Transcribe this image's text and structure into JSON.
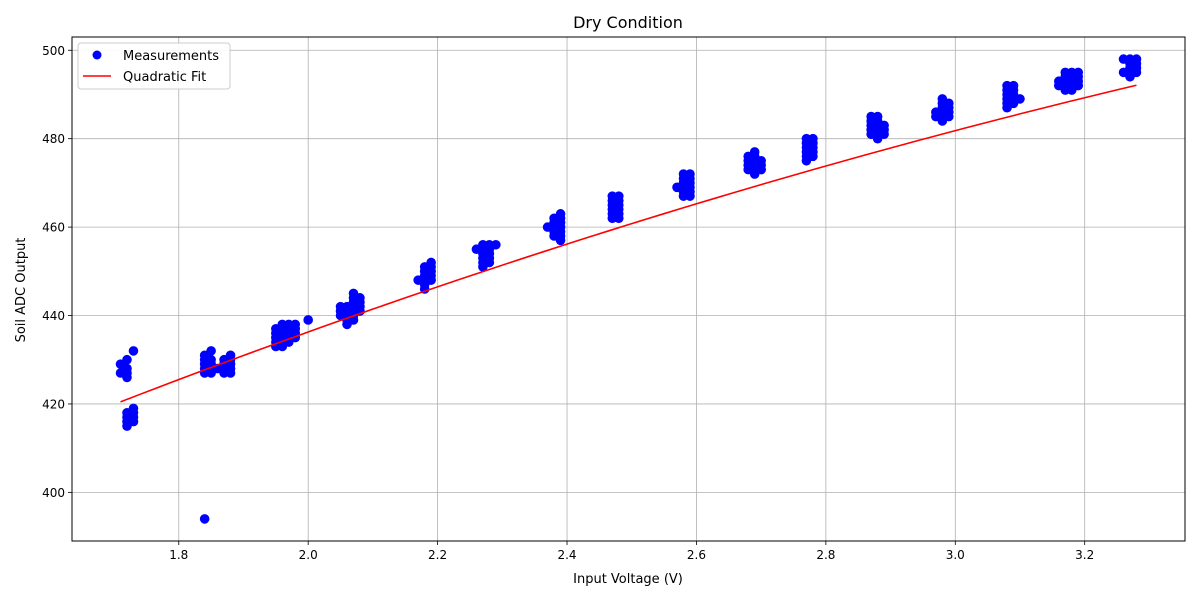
{
  "chart_data": {
    "type": "scatter",
    "title": "Dry Condition",
    "xlabel": "Input Voltage (V)",
    "ylabel": "Soil ADC Output",
    "xlim": [
      1.635,
      3.355
    ],
    "ylim": [
      389,
      503
    ],
    "x_ticks": [
      1.8,
      2.0,
      2.2,
      2.4,
      2.6,
      2.8,
      3.0,
      3.2
    ],
    "x_tick_labels": [
      "1.8",
      "2.0",
      "2.2",
      "2.4",
      "2.6",
      "2.8",
      "3.0",
      "3.2"
    ],
    "y_ticks": [
      400,
      420,
      440,
      460,
      480,
      500
    ],
    "y_tick_labels": [
      "400",
      "420",
      "440",
      "460",
      "480",
      "500"
    ],
    "grid": true,
    "legend_position": "top-left",
    "series": [
      {
        "name": "Measurements",
        "kind": "scatter",
        "color": "#0000ff",
        "points": [
          [
            1.71,
            429
          ],
          [
            1.71,
            427
          ],
          [
            1.72,
            430
          ],
          [
            1.72,
            428
          ],
          [
            1.72,
            427
          ],
          [
            1.72,
            426
          ],
          [
            1.73,
            432
          ],
          [
            1.72,
            418
          ],
          [
            1.72,
            417
          ],
          [
            1.72,
            416
          ],
          [
            1.72,
            415
          ],
          [
            1.73,
            419
          ],
          [
            1.73,
            418
          ],
          [
            1.73,
            417
          ],
          [
            1.73,
            416
          ],
          [
            1.84,
            394
          ],
          [
            1.84,
            431
          ],
          [
            1.84,
            430
          ],
          [
            1.84,
            429
          ],
          [
            1.84,
            428
          ],
          [
            1.84,
            427
          ],
          [
            1.85,
            432
          ],
          [
            1.85,
            430
          ],
          [
            1.85,
            429
          ],
          [
            1.85,
            428
          ],
          [
            1.85,
            427
          ],
          [
            1.86,
            428
          ],
          [
            1.87,
            430
          ],
          [
            1.87,
            429
          ],
          [
            1.87,
            428
          ],
          [
            1.87,
            427
          ],
          [
            1.88,
            431
          ],
          [
            1.88,
            430
          ],
          [
            1.88,
            429
          ],
          [
            1.88,
            428
          ],
          [
            1.88,
            427
          ],
          [
            1.95,
            437
          ],
          [
            1.95,
            436
          ],
          [
            1.95,
            435
          ],
          [
            1.95,
            434
          ],
          [
            1.95,
            433
          ],
          [
            1.96,
            438
          ],
          [
            1.96,
            437
          ],
          [
            1.96,
            436
          ],
          [
            1.96,
            435
          ],
          [
            1.96,
            434
          ],
          [
            1.96,
            433
          ],
          [
            1.97,
            438
          ],
          [
            1.97,
            437
          ],
          [
            1.97,
            436
          ],
          [
            1.97,
            435
          ],
          [
            1.97,
            434
          ],
          [
            1.98,
            438
          ],
          [
            1.98,
            437
          ],
          [
            1.98,
            436
          ],
          [
            1.98,
            435
          ],
          [
            2.0,
            439
          ],
          [
            2.05,
            442
          ],
          [
            2.05,
            441
          ],
          [
            2.05,
            440
          ],
          [
            2.06,
            442
          ],
          [
            2.06,
            441
          ],
          [
            2.06,
            440
          ],
          [
            2.06,
            439
          ],
          [
            2.06,
            438
          ],
          [
            2.07,
            445
          ],
          [
            2.07,
            444
          ],
          [
            2.07,
            443
          ],
          [
            2.07,
            442
          ],
          [
            2.07,
            441
          ],
          [
            2.07,
            440
          ],
          [
            2.07,
            439
          ],
          [
            2.08,
            444
          ],
          [
            2.08,
            443
          ],
          [
            2.08,
            442
          ],
          [
            2.08,
            441
          ],
          [
            2.17,
            448
          ],
          [
            2.18,
            451
          ],
          [
            2.18,
            450
          ],
          [
            2.18,
            449
          ],
          [
            2.18,
            448
          ],
          [
            2.18,
            447
          ],
          [
            2.18,
            446
          ],
          [
            2.19,
            452
          ],
          [
            2.19,
            451
          ],
          [
            2.19,
            450
          ],
          [
            2.19,
            449
          ],
          [
            2.19,
            448
          ],
          [
            2.26,
            455
          ],
          [
            2.27,
            456
          ],
          [
            2.27,
            455
          ],
          [
            2.27,
            454
          ],
          [
            2.27,
            453
          ],
          [
            2.27,
            452
          ],
          [
            2.27,
            451
          ],
          [
            2.28,
            456
          ],
          [
            2.28,
            455
          ],
          [
            2.28,
            454
          ],
          [
            2.28,
            453
          ],
          [
            2.28,
            452
          ],
          [
            2.29,
            456
          ],
          [
            2.37,
            460
          ],
          [
            2.38,
            462
          ],
          [
            2.38,
            461
          ],
          [
            2.38,
            460
          ],
          [
            2.38,
            459
          ],
          [
            2.38,
            458
          ],
          [
            2.39,
            463
          ],
          [
            2.39,
            462
          ],
          [
            2.39,
            461
          ],
          [
            2.39,
            460
          ],
          [
            2.39,
            459
          ],
          [
            2.39,
            458
          ],
          [
            2.39,
            457
          ],
          [
            2.47,
            467
          ],
          [
            2.47,
            466
          ],
          [
            2.47,
            465
          ],
          [
            2.47,
            464
          ],
          [
            2.47,
            463
          ],
          [
            2.47,
            462
          ],
          [
            2.48,
            467
          ],
          [
            2.48,
            466
          ],
          [
            2.48,
            465
          ],
          [
            2.48,
            464
          ],
          [
            2.48,
            463
          ],
          [
            2.48,
            462
          ],
          [
            2.57,
            469
          ],
          [
            2.58,
            472
          ],
          [
            2.58,
            471
          ],
          [
            2.58,
            470
          ],
          [
            2.58,
            469
          ],
          [
            2.58,
            468
          ],
          [
            2.58,
            467
          ],
          [
            2.59,
            472
          ],
          [
            2.59,
            471
          ],
          [
            2.59,
            470
          ],
          [
            2.59,
            469
          ],
          [
            2.59,
            468
          ],
          [
            2.59,
            467
          ],
          [
            2.68,
            476
          ],
          [
            2.68,
            475
          ],
          [
            2.68,
            474
          ],
          [
            2.68,
            473
          ],
          [
            2.69,
            477
          ],
          [
            2.69,
            476
          ],
          [
            2.69,
            475
          ],
          [
            2.69,
            474
          ],
          [
            2.69,
            473
          ],
          [
            2.69,
            472
          ],
          [
            2.7,
            475
          ],
          [
            2.7,
            474
          ],
          [
            2.7,
            473
          ],
          [
            2.77,
            480
          ],
          [
            2.77,
            479
          ],
          [
            2.77,
            478
          ],
          [
            2.77,
            477
          ],
          [
            2.77,
            476
          ],
          [
            2.77,
            475
          ],
          [
            2.78,
            480
          ],
          [
            2.78,
            479
          ],
          [
            2.78,
            478
          ],
          [
            2.78,
            477
          ],
          [
            2.78,
            476
          ],
          [
            2.87,
            485
          ],
          [
            2.87,
            484
          ],
          [
            2.87,
            483
          ],
          [
            2.87,
            482
          ],
          [
            2.87,
            481
          ],
          [
            2.88,
            485
          ],
          [
            2.88,
            484
          ],
          [
            2.88,
            483
          ],
          [
            2.88,
            482
          ],
          [
            2.88,
            481
          ],
          [
            2.88,
            480
          ],
          [
            2.89,
            483
          ],
          [
            2.89,
            482
          ],
          [
            2.89,
            481
          ],
          [
            2.97,
            486
          ],
          [
            2.97,
            485
          ],
          [
            2.98,
            489
          ],
          [
            2.98,
            488
          ],
          [
            2.98,
            487
          ],
          [
            2.98,
            486
          ],
          [
            2.98,
            485
          ],
          [
            2.98,
            484
          ],
          [
            2.99,
            488
          ],
          [
            2.99,
            487
          ],
          [
            2.99,
            486
          ],
          [
            2.99,
            485
          ],
          [
            3.08,
            492
          ],
          [
            3.08,
            491
          ],
          [
            3.08,
            490
          ],
          [
            3.08,
            489
          ],
          [
            3.08,
            488
          ],
          [
            3.08,
            487
          ],
          [
            3.09,
            492
          ],
          [
            3.09,
            491
          ],
          [
            3.09,
            490
          ],
          [
            3.09,
            489
          ],
          [
            3.09,
            488
          ],
          [
            3.1,
            489
          ],
          [
            3.16,
            493
          ],
          [
            3.16,
            492
          ],
          [
            3.17,
            495
          ],
          [
            3.17,
            494
          ],
          [
            3.17,
            493
          ],
          [
            3.17,
            492
          ],
          [
            3.17,
            491
          ],
          [
            3.18,
            495
          ],
          [
            3.18,
            494
          ],
          [
            3.18,
            493
          ],
          [
            3.18,
            492
          ],
          [
            3.18,
            491
          ],
          [
            3.19,
            495
          ],
          [
            3.19,
            494
          ],
          [
            3.19,
            493
          ],
          [
            3.19,
            492
          ],
          [
            3.26,
            498
          ],
          [
            3.26,
            495
          ],
          [
            3.27,
            498
          ],
          [
            3.27,
            497
          ],
          [
            3.27,
            496
          ],
          [
            3.27,
            495
          ],
          [
            3.27,
            494
          ],
          [
            3.28,
            498
          ],
          [
            3.28,
            497
          ],
          [
            3.28,
            496
          ],
          [
            3.28,
            495
          ]
        ]
      },
      {
        "name": "Quadratic Fit",
        "kind": "line",
        "color": "#ff0000",
        "x_range": [
          1.71,
          3.28
        ],
        "coefficients": {
          "a": -6.93,
          "b": 80.19,
          "c": 303.62
        }
      }
    ]
  }
}
